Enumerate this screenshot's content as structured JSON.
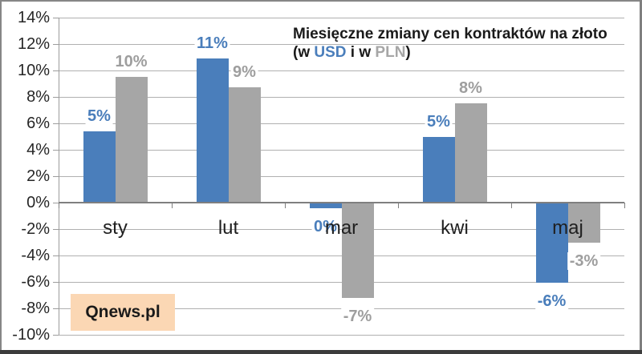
{
  "title": {
    "line1": "Miesięczne zmiany cen kontraktów na złoto",
    "line2_parts": [
      {
        "text": "(w ",
        "color": "#1a1a1a"
      },
      {
        "text": "USD",
        "color": "#4a7ebb"
      },
      {
        "text": " i w ",
        "color": "#1a1a1a"
      },
      {
        "text": "PLN",
        "color": "#a6a6a6"
      },
      {
        "text": ")",
        "color": "#1a1a1a"
      }
    ]
  },
  "watermark": {
    "label": "Qnews.pl",
    "bg_color": "#fbd7b4"
  },
  "colors": {
    "usd_blue": "#4a7ebb",
    "pln_gray": "#a6a6a6",
    "pln_label_gray": "#9e9e9e",
    "gridline": "#b0b0b0",
    "zero_line": "#7f7f7f",
    "axis_line": "#9c9c9c",
    "tick": "#8c8c8c",
    "text_dark": "#262626"
  },
  "chart_data": {
    "type": "bar",
    "title": "Miesięczne zmiany cen kontraktów na złoto (w USD i w PLN)",
    "categories": [
      "sty",
      "lut",
      "mar",
      "kwi",
      "maj"
    ],
    "series": [
      {
        "name": "USD",
        "color": "#4a7ebb",
        "label_color": "#4a7ebb",
        "values": [
          5,
          11,
          0,
          5,
          -6
        ],
        "labels": [
          "5%",
          "11%",
          "0%",
          "5%",
          "-6%"
        ],
        "plotted": [
          5.4,
          10.9,
          -0.45,
          5.0,
          -6.05
        ]
      },
      {
        "name": "PLN",
        "color": "#a6a6a6",
        "label_color": "#9e9e9e",
        "values": [
          10,
          9,
          -7,
          8,
          -3
        ],
        "labels": [
          "10%",
          "9%",
          "-7%",
          "8%",
          "-3%"
        ],
        "plotted": [
          9.5,
          8.7,
          -7.2,
          7.5,
          -3.0
        ]
      }
    ],
    "ylim": [
      -10,
      14
    ],
    "ytick_step": 2,
    "ytick_labels": [
      "14%",
      "12%",
      "10%",
      "8%",
      "6%",
      "4%",
      "2%",
      "0%",
      "-2%",
      "-4%",
      "-6%",
      "-8%",
      "-10%"
    ],
    "grid": true,
    "legend_position": "none",
    "annotation": "Qnews.pl"
  }
}
